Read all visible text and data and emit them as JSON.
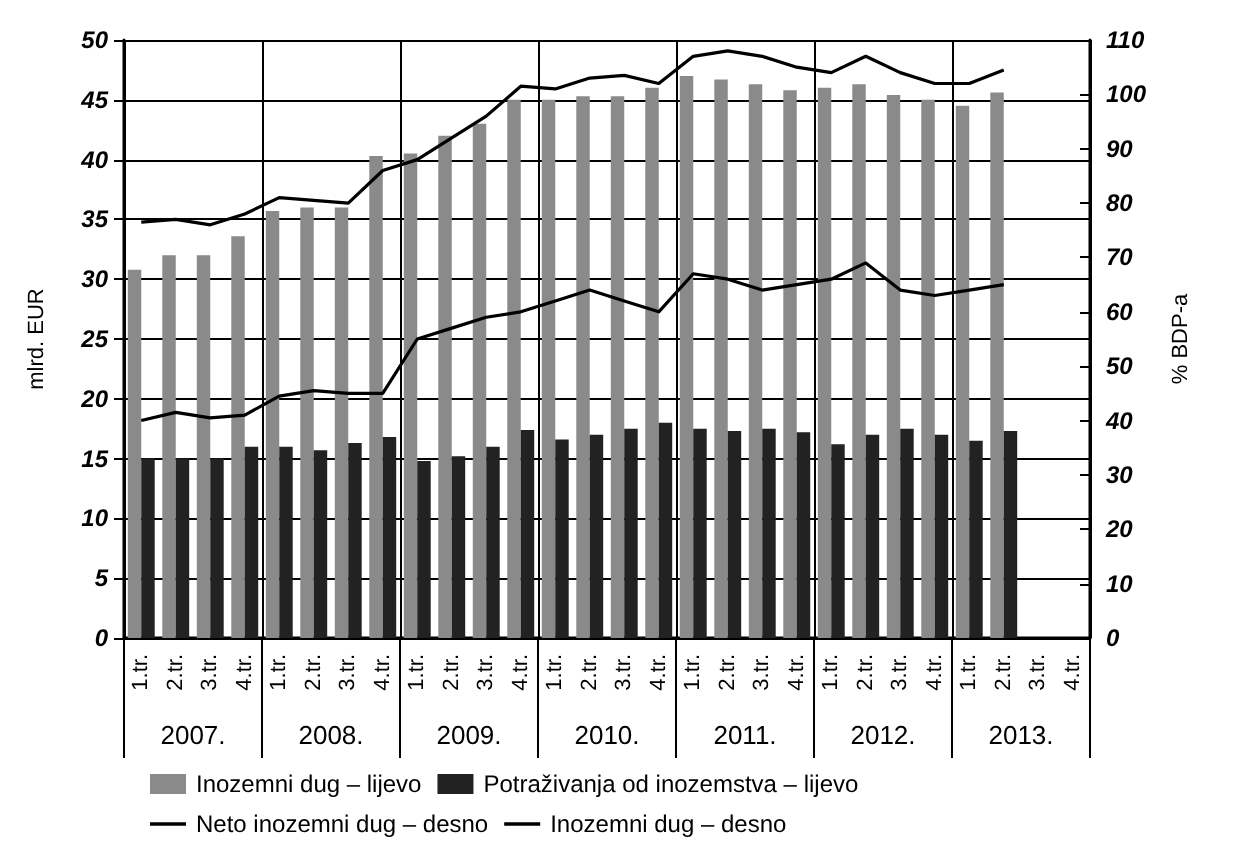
{
  "chart_data": {
    "type": "bar",
    "categories": [
      "1.tr.",
      "2.tr.",
      "3.tr.",
      "4.tr.",
      "1.tr.",
      "2.tr.",
      "3.tr.",
      "4.tr.",
      "1.tr.",
      "2.tr.",
      "3.tr.",
      "4.tr.",
      "1.tr.",
      "2.tr.",
      "3.tr.",
      "4.tr.",
      "1.tr.",
      "2.tr.",
      "3.tr.",
      "4.tr.",
      "1.tr.",
      "2.tr.",
      "3.tr.",
      "4.tr.",
      "1.tr.",
      "2.tr.",
      "3.tr.",
      "4.tr."
    ],
    "series": [
      {
        "name": "Inozemni dug – lijevo",
        "color": "#8a8a8a",
        "values": [
          30.8,
          32,
          32,
          33.6,
          35.7,
          36,
          36,
          40.3,
          40.5,
          42,
          43,
          45,
          45,
          45.3,
          45.3,
          46,
          47,
          46.7,
          46.3,
          45.8,
          46,
          46.3,
          45.4,
          45,
          44.5,
          45.6,
          null,
          null
        ]
      },
      {
        "name": "Potraživanja od inozemstva – lijevo",
        "color": "#222222",
        "values": [
          15,
          15,
          15,
          16,
          16,
          15.7,
          16.3,
          16.8,
          14.8,
          15.2,
          16,
          17.4,
          16.6,
          17,
          17.5,
          18,
          17.5,
          17.3,
          17.5,
          17.2,
          16.2,
          17,
          17.5,
          17,
          16.5,
          17.3,
          null,
          null
        ]
      },
      {
        "name": "Neto inozemni dug – desno",
        "type": "line",
        "axis": "y2",
        "color": "#000000",
        "values": [
          40,
          41.5,
          40.5,
          41,
          44.5,
          45.5,
          45,
          45,
          55,
          57,
          59,
          60,
          62,
          64,
          62,
          60,
          67,
          66,
          64,
          65,
          66,
          69,
          64,
          63,
          64,
          65,
          null,
          null
        ]
      },
      {
        "name": "Inozemni dug – desno",
        "type": "line",
        "axis": "y2",
        "color": "#000000",
        "values": [
          76.5,
          77,
          76,
          78,
          81,
          80.5,
          80,
          86,
          88,
          92,
          96,
          101.5,
          101,
          103,
          103.5,
          102,
          107,
          108,
          107,
          105,
          104,
          107,
          104,
          102,
          102,
          104.5,
          null,
          null
        ]
      }
    ],
    "ylabel": "mlrd. EUR",
    "y2label": "% BDP-a",
    "ylim": [
      0,
      50
    ],
    "yticks": [
      0,
      5,
      10,
      15,
      20,
      25,
      30,
      35,
      40,
      45,
      50
    ],
    "y2lim": [
      0,
      110
    ],
    "y2ticks": [
      0,
      10,
      20,
      30,
      40,
      50,
      60,
      70,
      80,
      90,
      100,
      110
    ],
    "annotations": [
      "2007.",
      "2008.",
      "2009.",
      "2010.",
      "2011.",
      "2012.",
      "2013."
    ],
    "grid": true,
    "legend": "bottom",
    "marker": "none",
    "line_style": "solid"
  }
}
